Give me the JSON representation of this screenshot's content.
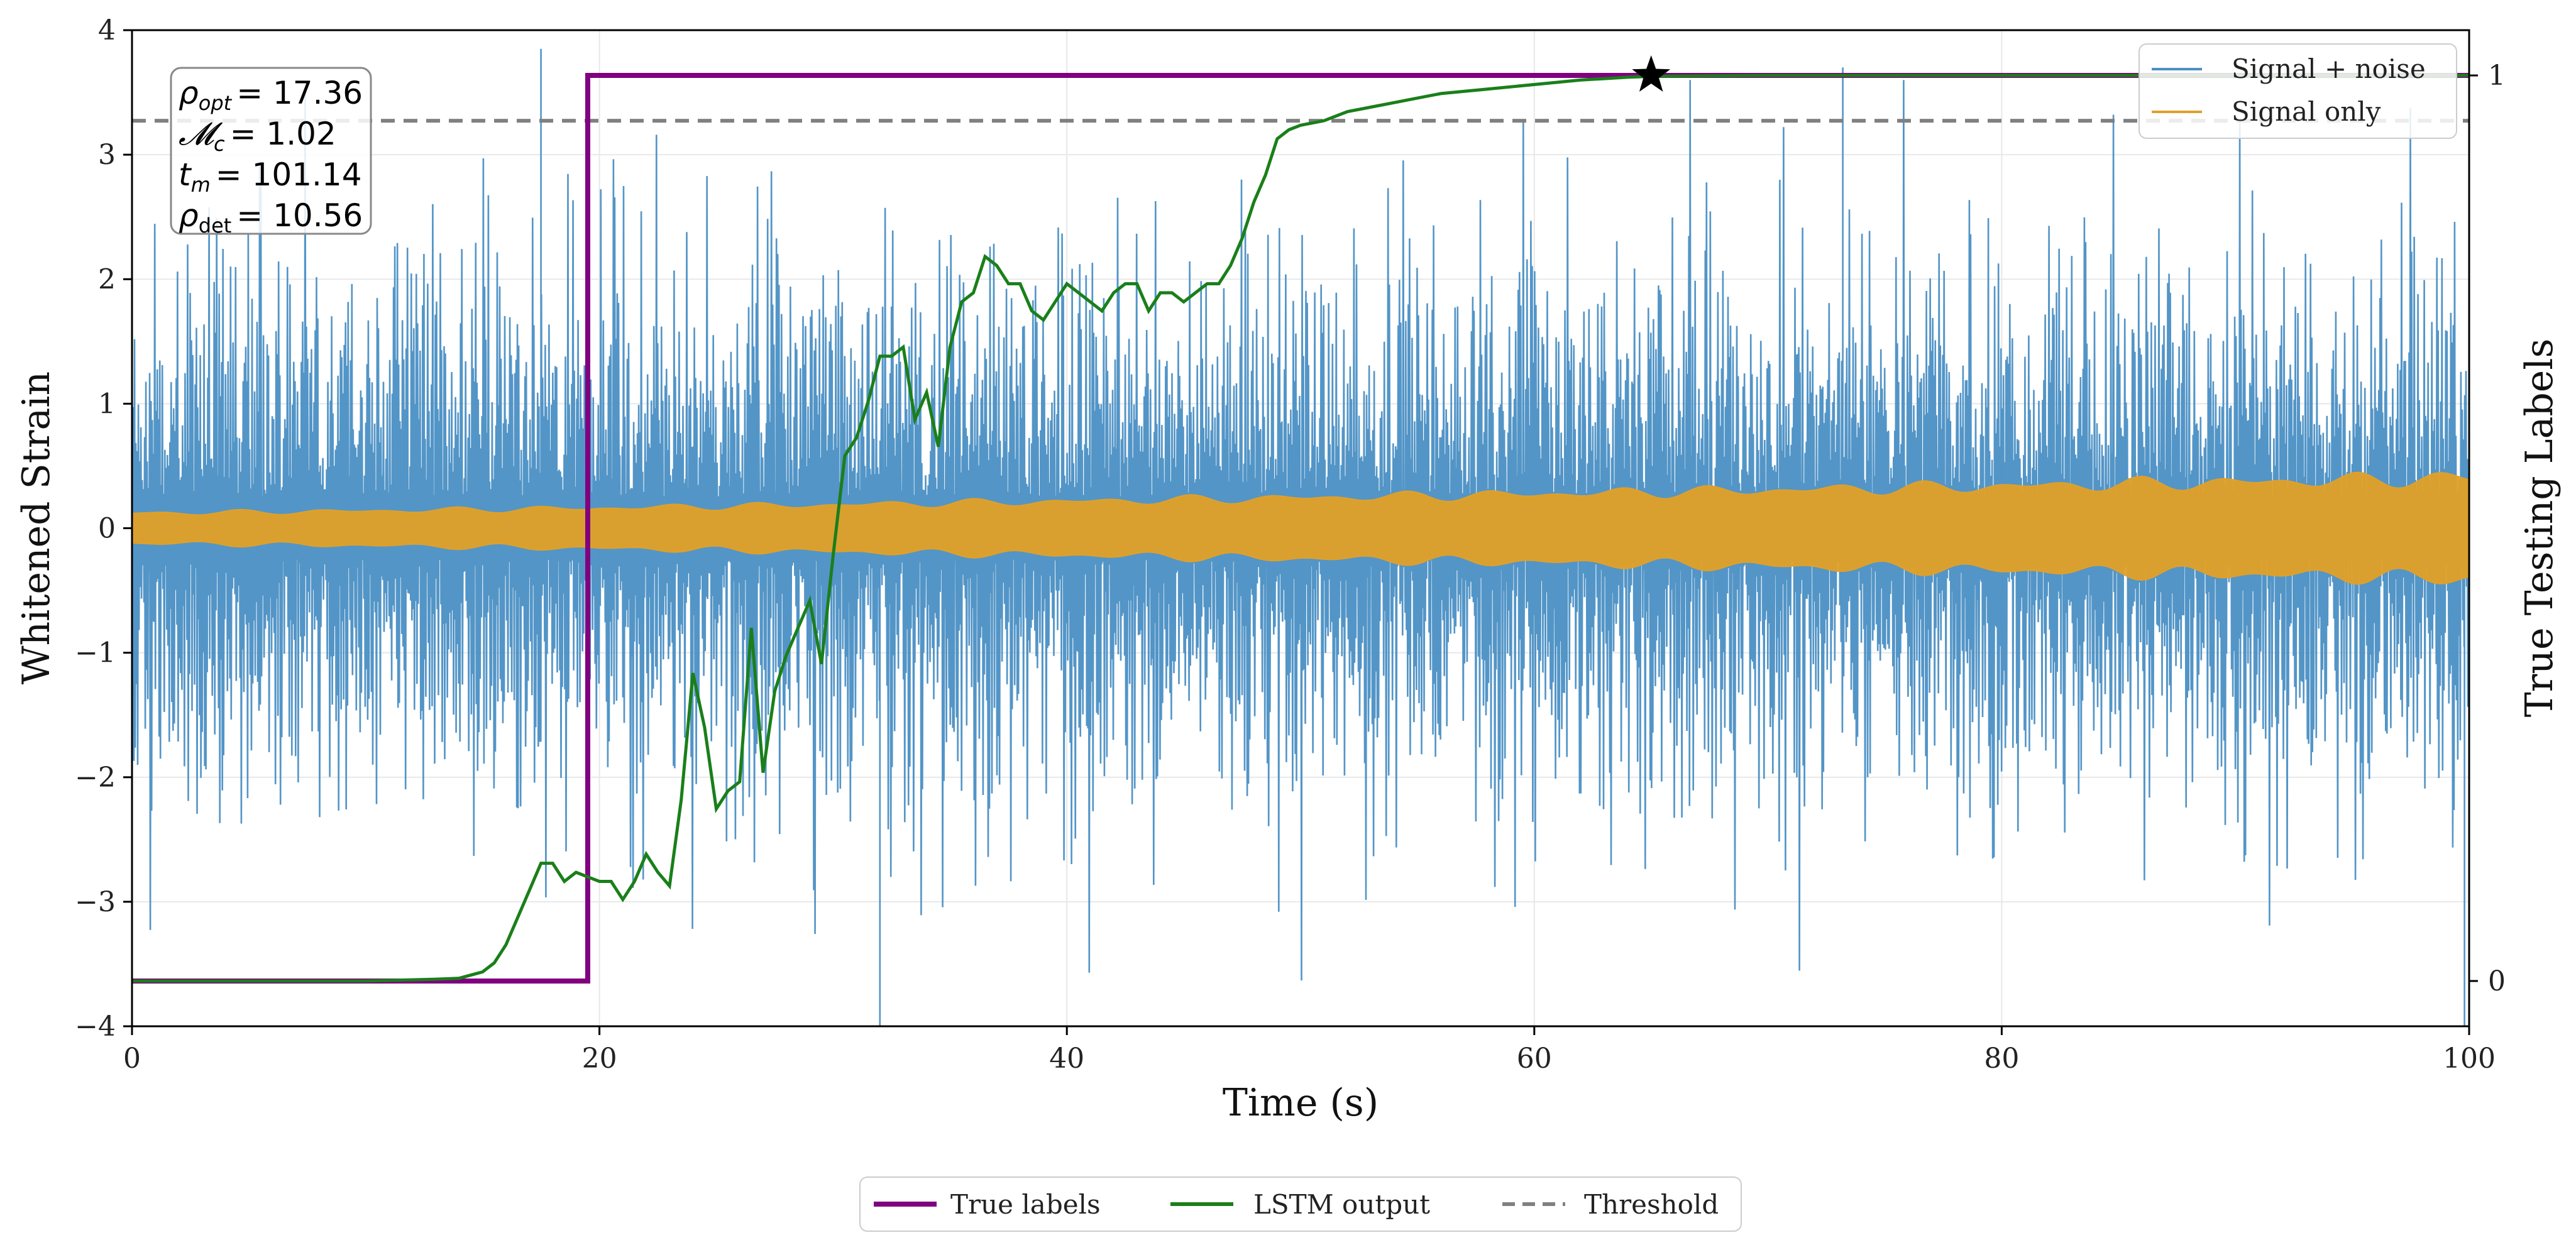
{
  "chart_data": {
    "type": "line",
    "xlabel": "Time (s)",
    "ylabel": "Whitened Strain",
    "ylabel_right": "True Testing Labels",
    "xlim": [
      0,
      100
    ],
    "ylim": [
      -4,
      4
    ],
    "ylim_right": [
      -0.05,
      1.05
    ],
    "xticks": [
      "0",
      "20",
      "40",
      "60",
      "80",
      "100"
    ],
    "yticks": [
      "−4",
      "−3",
      "−2",
      "−1",
      "0",
      "1",
      "2",
      "3",
      "4"
    ],
    "yticks_right": [
      "0",
      "1"
    ],
    "grid": true,
    "colors": {
      "signal_noise": "#4a8fc4",
      "signal_only": "#e0a028",
      "true_labels": "#800080",
      "lstm": "#1a7f1a",
      "threshold": "#808080",
      "marker": "#000000"
    },
    "annotation_box": [
      {
        "symbol": "ρ",
        "sub": "opt",
        "value": "= 17.36"
      },
      {
        "symbol": "𝓜",
        "sub": "c",
        "value": "= 1.02"
      },
      {
        "symbol": "t",
        "sub": "m",
        "value": "= 101.14"
      },
      {
        "symbol": "ρ",
        "sub": "det",
        "value": "= 10.56"
      }
    ],
    "legend_upper": [
      "Signal + noise",
      "Signal only"
    ],
    "legend_lower": [
      "True labels",
      "LSTM output",
      "Threshold"
    ],
    "threshold": 0.95,
    "true_labels": {
      "x": [
        0,
        19.5,
        19.5,
        100
      ],
      "y": [
        0,
        0,
        1,
        1
      ]
    },
    "detection_marker": {
      "x": 65,
      "y": 1
    },
    "signal_noise": {
      "x_range": [
        0,
        100
      ],
      "amplitude_std": 1.0,
      "peak_examples": [
        [
          17.5,
          3.85
        ],
        [
          32.0,
          -4.0
        ],
        [
          73.2,
          3.7
        ],
        [
          99.8,
          -4.0
        ]
      ]
    },
    "signal_only": {
      "x_range": [
        0,
        100
      ],
      "envelope_start": 0.12,
      "envelope_end": 0.4
    },
    "lstm_output": {
      "x": [
        0,
        5,
        10,
        13,
        14,
        15,
        15.5,
        16,
        16.5,
        17,
        17.5,
        18,
        18.5,
        19,
        19.5,
        20,
        20.5,
        21,
        21.5,
        22,
        22.5,
        23,
        23.5,
        24,
        24.5,
        25,
        25.5,
        26,
        26.5,
        27,
        27.5,
        28,
        28.5,
        29,
        29.5,
        30,
        30.5,
        31,
        31.5,
        32,
        32.5,
        33,
        33.5,
        34,
        34.5,
        35,
        35.5,
        36,
        36.5,
        37,
        37.5,
        38,
        38.5,
        39,
        39.5,
        40,
        40.5,
        41,
        41.5,
        42,
        42.5,
        43,
        43.5,
        44,
        44.5,
        45,
        45.5,
        46,
        46.5,
        47,
        47.5,
        48,
        48.5,
        49,
        49.5,
        50,
        51,
        52,
        53,
        54,
        55,
        56,
        58,
        60,
        62,
        64,
        65,
        70,
        80,
        90,
        100
      ],
      "y": [
        0,
        0,
        0,
        0.002,
        0.003,
        0.01,
        0.02,
        0.04,
        0.07,
        0.1,
        0.13,
        0.13,
        0.11,
        0.12,
        0.115,
        0.11,
        0.11,
        0.09,
        0.11,
        0.14,
        0.12,
        0.105,
        0.2,
        0.34,
        0.28,
        0.19,
        0.21,
        0.22,
        0.39,
        0.23,
        0.32,
        0.36,
        0.39,
        0.42,
        0.35,
        0.47,
        0.58,
        0.6,
        0.64,
        0.69,
        0.69,
        0.7,
        0.62,
        0.65,
        0.59,
        0.7,
        0.75,
        0.76,
        0.8,
        0.79,
        0.77,
        0.77,
        0.74,
        0.73,
        0.75,
        0.77,
        0.76,
        0.75,
        0.74,
        0.76,
        0.77,
        0.77,
        0.74,
        0.76,
        0.76,
        0.75,
        0.76,
        0.77,
        0.77,
        0.79,
        0.82,
        0.86,
        0.89,
        0.93,
        0.94,
        0.945,
        0.95,
        0.96,
        0.965,
        0.97,
        0.975,
        0.98,
        0.985,
        0.99,
        0.995,
        0.998,
        0.999,
        1.0,
        1.0,
        1.0,
        1.0
      ]
    }
  }
}
